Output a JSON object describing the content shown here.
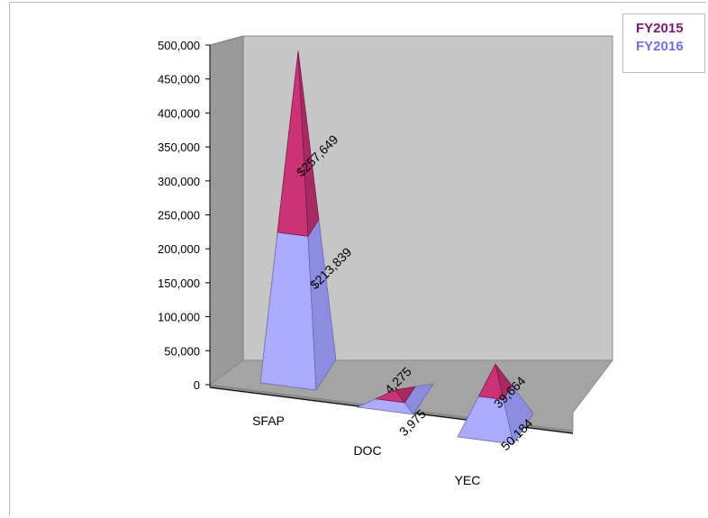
{
  "chart_data": {
    "type": "bar",
    "categories": [
      "SFAP",
      "DOC",
      "YEC"
    ],
    "series": [
      {
        "name": "FY2016",
        "values": [
          213839,
          3975,
          50184
        ],
        "labels": [
          "$213,839",
          "3,975",
          "50,184"
        ]
      },
      {
        "name": "FY2015",
        "values": [
          257649,
          4275,
          39664
        ],
        "labels": [
          "$257,649",
          "4,275",
          "39,664"
        ]
      }
    ],
    "stacked": true,
    "ylim": [
      0,
      500000
    ],
    "yticks": [
      "0",
      "50,000",
      "100,000",
      "150,000",
      "200,000",
      "250,000",
      "300,000",
      "350,000",
      "400,000",
      "450,000",
      "500,000"
    ],
    "grid": false,
    "legend_position": "top-right",
    "colors": {
      "FY2015": "#cc3377",
      "FY2016": "#aaaaff",
      "legend_FY2015_text": "#7a1a6a",
      "legend_FY2016_text": "#7070dd",
      "wall": "#bdbdbd",
      "floor": "#9e9e9e"
    }
  }
}
